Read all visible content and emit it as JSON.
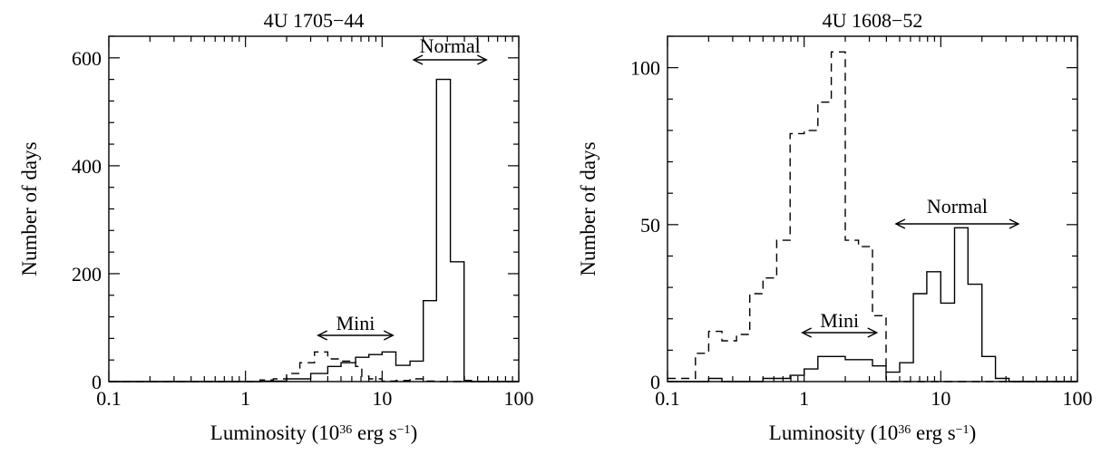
{
  "chart_data": [
    {
      "type": "histogram",
      "title": "4U 1705−44",
      "xlabel": "Luminosity",
      "xlabel_unit": "(10^36 erg s^−1)",
      "ylabel": "Number of days",
      "xscale": "log",
      "xlim": [
        0.1,
        100
      ],
      "ylim": [
        0,
        640
      ],
      "xticks": [
        "0.1",
        "1",
        "10",
        "100"
      ],
      "yticks": [
        0,
        200,
        400,
        600
      ],
      "series": [
        {
          "style": "solid",
          "edges": [
            0.1,
            1.28,
            2.0,
            3.0,
            4.0,
            5.0,
            6.4,
            8.0,
            10.0,
            12.6,
            16.0,
            20.0,
            25.0,
            31.6,
            39.8,
            45.0,
            100
          ],
          "values": [
            0,
            1,
            5,
            15,
            28,
            35,
            45,
            50,
            55,
            30,
            38,
            150,
            560,
            222,
            2,
            0
          ]
        },
        {
          "style": "dashed",
          "edges": [
            0.1,
            1.28,
            1.6,
            2.0,
            2.5,
            3.2,
            4.0,
            5.0,
            6.4,
            7.1,
            8.0,
            10.0,
            12.6,
            16.0,
            20.0,
            25.0,
            31.6,
            39.8,
            45.0,
            100
          ],
          "values": [
            0,
            3,
            5,
            15,
            35,
            55,
            42,
            38,
            28,
            10,
            5,
            1,
            2,
            5,
            1,
            0,
            0,
            2,
            0
          ]
        }
      ],
      "annotations": [
        {
          "label": "Mini",
          "x_range": [
            3.4,
            12
          ]
        },
        {
          "label": "Normal",
          "x_range": [
            17,
            58
          ]
        }
      ]
    },
    {
      "type": "histogram",
      "title": "4U 1608−52",
      "xlabel": "Luminosity",
      "xlabel_unit": "(10^36 erg s^−1)",
      "ylabel": "Number of days",
      "xscale": "log",
      "xlim": [
        0.1,
        100
      ],
      "ylim": [
        0,
        110
      ],
      "xticks": [
        "0.1",
        "1",
        "10",
        "100"
      ],
      "yticks": [
        0,
        50,
        100
      ],
      "series": [
        {
          "style": "solid",
          "edges": [
            0.1,
            0.16,
            0.2,
            0.25,
            0.32,
            0.4,
            0.5,
            0.63,
            0.79,
            1.0,
            1.26,
            1.58,
            2.0,
            2.5,
            3.16,
            3.98,
            5.0,
            6.3,
            7.9,
            10.0,
            12.6,
            15.8,
            20.0,
            25.1,
            31.6,
            39.8,
            100
          ],
          "values": [
            0,
            0,
            1,
            0,
            0,
            0,
            1,
            1,
            2,
            4,
            8,
            8,
            7,
            7,
            5,
            3,
            6,
            28,
            35,
            25,
            49,
            31,
            8,
            1,
            0,
            0
          ]
        },
        {
          "style": "dashed",
          "edges": [
            0.1,
            0.16,
            0.2,
            0.25,
            0.32,
            0.4,
            0.5,
            0.63,
            0.79,
            1.0,
            1.26,
            1.58,
            2.0,
            2.5,
            3.16,
            3.98,
            100
          ],
          "values": [
            1,
            9,
            16,
            13,
            15,
            28,
            33,
            45,
            79,
            80,
            89,
            105,
            45,
            43,
            21,
            0
          ]
        }
      ],
      "annotations": [
        {
          "label": "Mini",
          "x_range": [
            0.97,
            3.4
          ]
        },
        {
          "label": "Normal",
          "x_range": [
            4.7,
            37
          ]
        }
      ]
    }
  ]
}
